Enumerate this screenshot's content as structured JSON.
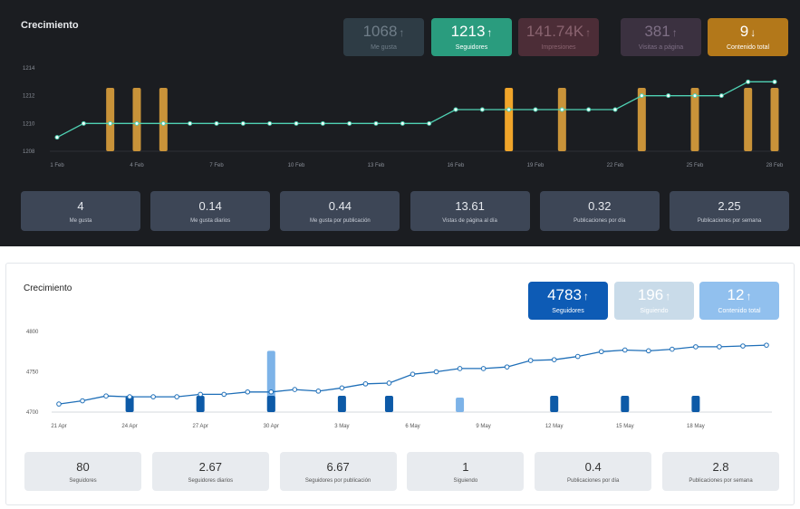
{
  "chart_data": [
    {
      "type": "line",
      "title": "Crecimiento",
      "theme": "dark",
      "x": [
        "1 Feb",
        "2 Feb",
        "3 Feb",
        "4 Feb",
        "5 Feb",
        "6 Feb",
        "7 Feb",
        "8 Feb",
        "9 Feb",
        "10 Feb",
        "11 Feb",
        "12 Feb",
        "13 Feb",
        "14 Feb",
        "15 Feb",
        "16 Feb",
        "17 Feb",
        "18 Feb",
        "19 Feb",
        "20 Feb",
        "21 Feb",
        "22 Feb",
        "23 Feb",
        "24 Feb",
        "25 Feb",
        "26 Feb",
        "27 Feb",
        "28 Feb"
      ],
      "xticks": [
        "1 Feb",
        "4 Feb",
        "7 Feb",
        "10 Feb",
        "13 Feb",
        "16 Feb",
        "19 Feb",
        "22 Feb",
        "25 Feb",
        "28 Feb"
      ],
      "ylim": [
        1208,
        1214
      ],
      "yticks": [
        1208,
        1210,
        1212,
        1214
      ],
      "series": [
        {
          "values": [
            1209,
            1210,
            1210,
            1210,
            1210,
            1210,
            1210,
            1210,
            1210,
            1210,
            1210,
            1210,
            1210,
            1210,
            1210,
            1211,
            1211,
            1211,
            1211,
            1211,
            1211,
            1211,
            1212,
            1212,
            1212,
            1212,
            1213,
            1213
          ],
          "color": "#4fd1b3"
        }
      ],
      "content_posts": [
        "3 Feb",
        "4 Feb",
        "5 Feb",
        "18 Feb",
        "20 Feb",
        "23 Feb",
        "25 Feb",
        "27 Feb",
        "28 Feb"
      ],
      "post_bar_color": "#c99339",
      "highlight_post": "18 Feb",
      "highlight_color": "#f0a52a",
      "kpis": [
        {
          "value": "1068",
          "arrow": "↑",
          "label": "Me gusta",
          "bg": "#2e3c45",
          "fg": "#6f7d88"
        },
        {
          "value": "1213",
          "arrow": "↑",
          "label": "Seguidores",
          "bg": "#2a9c7e",
          "fg": "#ffffff"
        },
        {
          "value": "141.74K",
          "arrow": "↑",
          "label": "Impresiones",
          "bg": "#4c2d37",
          "fg": "#8a6470"
        },
        {
          "value": "381",
          "arrow": "↑",
          "label": "Visitas a página",
          "bg": "#3b3140",
          "fg": "#7e6f85"
        },
        {
          "value": "9",
          "arrow": "↓",
          "label": "Contenido total",
          "bg": "#b3781a",
          "fg": "#ffffff"
        }
      ],
      "stats": [
        {
          "value": "4",
          "label": "Me gusta"
        },
        {
          "value": "0.14",
          "label": "Me gusta diarios"
        },
        {
          "value": "0.44",
          "label": "Me gusta por publicación"
        },
        {
          "value": "13.61",
          "label": "Vistas de página al día"
        },
        {
          "value": "0.32",
          "label": "Publicaciones por día"
        },
        {
          "value": "2.25",
          "label": "Publicaciones por semana"
        }
      ]
    },
    {
      "type": "line",
      "title": "Crecimiento",
      "theme": "light",
      "x": [
        "21 Apr",
        "22 Apr",
        "23 Apr",
        "24 Apr",
        "25 Apr",
        "26 Apr",
        "27 Apr",
        "28 Apr",
        "29 Apr",
        "30 Apr",
        "1 May",
        "2 May",
        "3 May",
        "4 May",
        "5 May",
        "6 May",
        "7 May",
        "8 May",
        "9 May",
        "10 May",
        "11 May",
        "12 May",
        "13 May",
        "14 May",
        "15 May",
        "16 May",
        "17 May",
        "18 May",
        "19 May",
        "20 May",
        "21 May"
      ],
      "xticks": [
        "21 Apr",
        "24 Apr",
        "27 Apr",
        "30 Apr",
        "3 May",
        "6 May",
        "9 May",
        "12 May",
        "15 May",
        "18 May"
      ],
      "ylim": [
        4700,
        4800
      ],
      "yticks": [
        4700,
        4750,
        4800
      ],
      "series": [
        {
          "values": [
            4710,
            4714,
            4720,
            4719,
            4719,
            4719,
            4722,
            4722,
            4725,
            4725,
            4728,
            4726,
            4730,
            4735,
            4736,
            4747,
            4750,
            4754,
            4754,
            4756,
            4764,
            4765,
            4769,
            4775,
            4777,
            4776,
            4778,
            4781,
            4781,
            4782,
            4783
          ],
          "color": "#1f6fb8"
        }
      ],
      "content_posts": [
        "24 Apr",
        "27 Apr",
        "30 Apr",
        "3 May",
        "5 May",
        "12 May",
        "15 May",
        "18 May"
      ],
      "post_bar_color": "#0d5aa7",
      "light_posts": [
        {
          "date": "30 Apr",
          "value": 4776
        },
        {
          "date": "8 May",
          "value": 4718
        }
      ],
      "light_post_color": "#7db3e8",
      "kpis": [
        {
          "value": "4783",
          "arrow": "↑",
          "label": "Seguidores",
          "bg": "#0d5bb5",
          "fg": "#ffffff"
        },
        {
          "value": "196",
          "arrow": "↑",
          "label": "Siguiendo",
          "bg": "#c9dbe9",
          "fg": "#ffffff"
        },
        {
          "value": "12",
          "arrow": "↑",
          "label": "Contenido total",
          "bg": "#91c0ee",
          "fg": "#ffffff"
        }
      ],
      "stats": [
        {
          "value": "80",
          "label": "Seguidores"
        },
        {
          "value": "2.67",
          "label": "Seguidores diarios"
        },
        {
          "value": "6.67",
          "label": "Seguidores por publicación"
        },
        {
          "value": "1",
          "label": "Siguiendo"
        },
        {
          "value": "0.4",
          "label": "Publicaciones por día"
        },
        {
          "value": "2.8",
          "label": "Publicaciones por semana"
        }
      ]
    }
  ]
}
